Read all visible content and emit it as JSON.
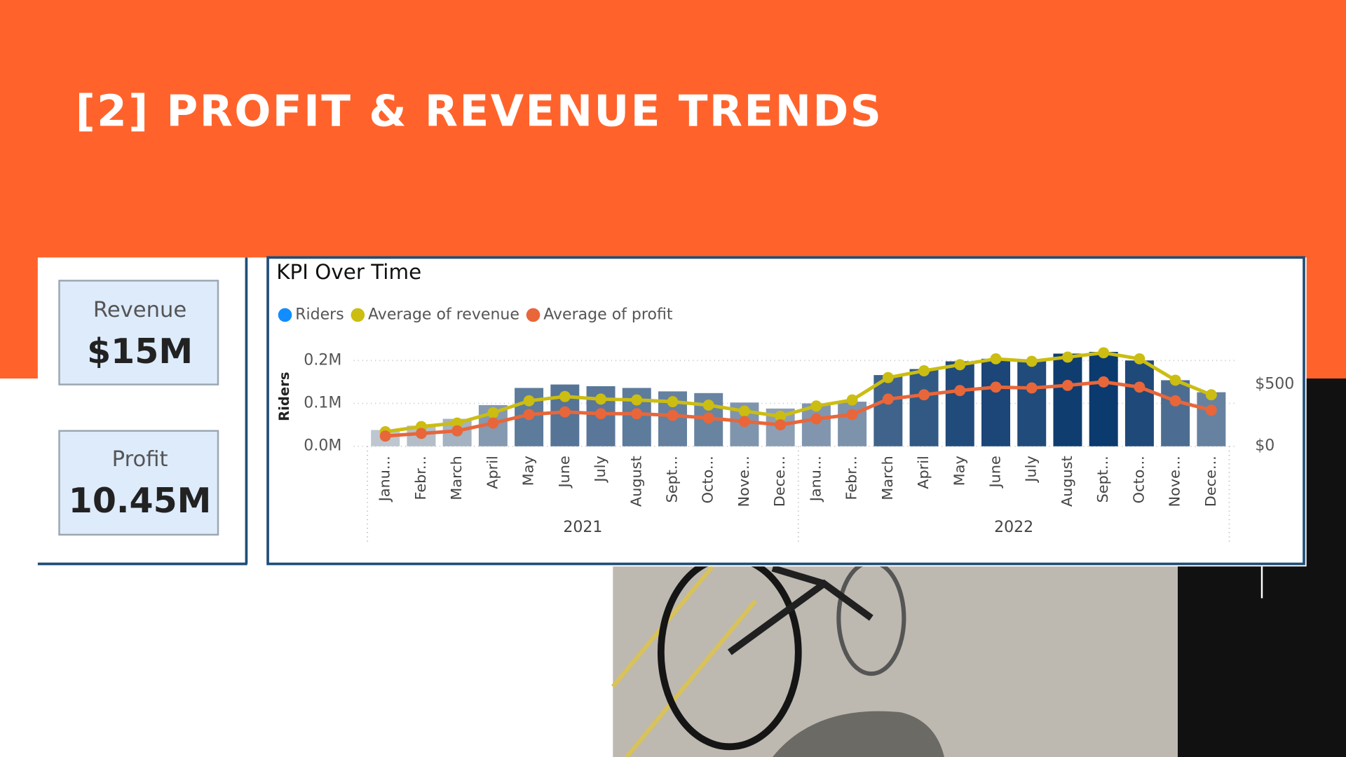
{
  "title": "[2] PROFIT & REVENUE TRENDS",
  "cards": [
    {
      "label": "Revenue",
      "value": "$15M"
    },
    {
      "label": "Profit",
      "value": "10.45M"
    }
  ],
  "chart_data": {
    "type": "bar",
    "title": "KPI Over Time",
    "y_label": "Riders",
    "categories": [
      "Janu...",
      "Febr...",
      "March",
      "April",
      "May",
      "June",
      "July",
      "August",
      "Sept...",
      "Octo...",
      "Nove...",
      "Dece...",
      "Janu...",
      "Febr...",
      "March",
      "April",
      "May",
      "June",
      "July",
      "August",
      "Sept...",
      "Octo...",
      "Nove...",
      "Dece..."
    ],
    "years": [
      "2021",
      "2022"
    ],
    "series": [
      {
        "name": "Riders",
        "color": "#118dff",
        "color_scale": [
          "#e3e3e3",
          "#0b3a6e"
        ],
        "values": [
          0.038,
          0.048,
          0.064,
          0.096,
          0.136,
          0.144,
          0.14,
          0.136,
          0.128,
          0.124,
          0.102,
          0.088,
          0.1,
          0.104,
          0.166,
          0.18,
          0.198,
          0.204,
          0.198,
          0.216,
          0.22,
          0.2,
          0.154,
          0.126
        ]
      },
      {
        "name": "Average of revenue",
        "color": "#cbbd12",
        "axis": "y2",
        "values": [
          118,
          160,
          188,
          271,
          368,
          403,
          382,
          375,
          361,
          333,
          285,
          243,
          326,
          375,
          556,
          611,
          660,
          708,
          688,
          722,
          757,
          708,
          535,
          417
        ]
      },
      {
        "name": "Average of profit",
        "color": "#e8663a",
        "axis": "y2",
        "values": [
          83,
          104,
          125,
          188,
          257,
          278,
          264,
          264,
          250,
          229,
          201,
          174,
          222,
          257,
          382,
          417,
          451,
          479,
          472,
          493,
          521,
          479,
          368,
          292
        ]
      }
    ],
    "ylim": [
      0,
      0.22
    ],
    "yticks": [
      {
        "value": 0,
        "label": "0.0M"
      },
      {
        "value": 0.1,
        "label": "0.1M"
      },
      {
        "value": 0.2,
        "label": "0.2M"
      }
    ],
    "y2lim": [
      0,
      764
    ],
    "y2ticks": [
      {
        "value": 0,
        "label": "$0"
      },
      {
        "value": 500,
        "label": "$500"
      }
    ],
    "grid": true
  }
}
